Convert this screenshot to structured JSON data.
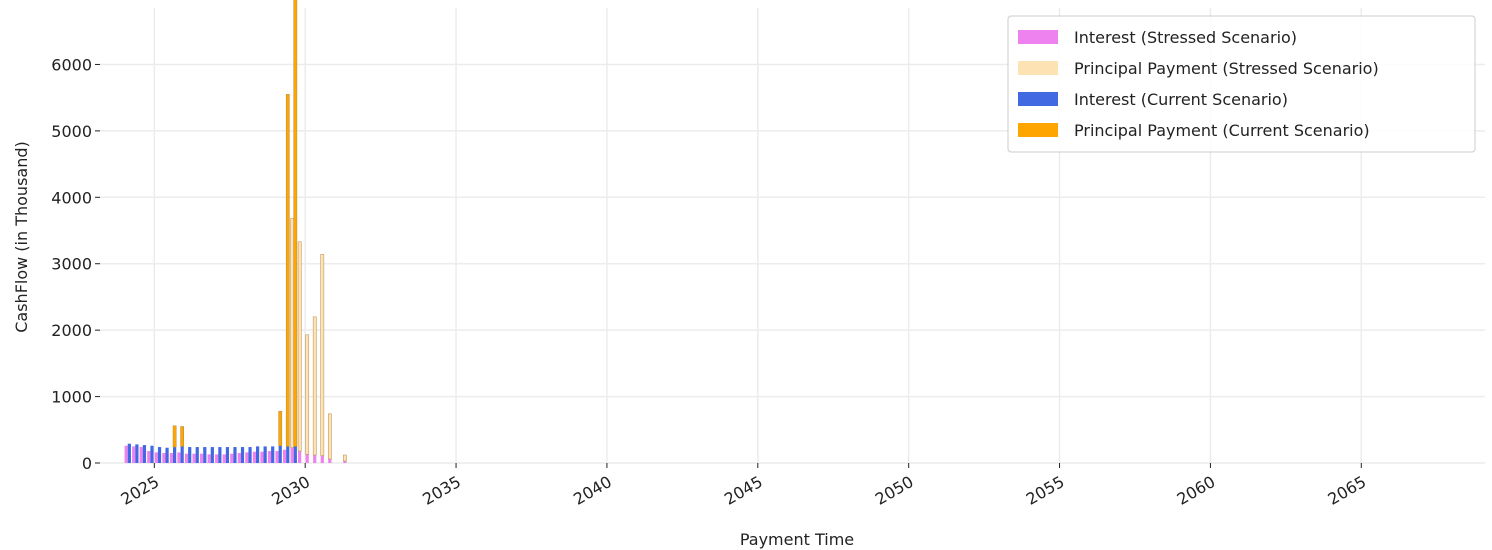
{
  "chart_data": {
    "type": "bar",
    "title": "",
    "xlabel": "Payment Time",
    "ylabel": "CashFlow (in Thousand)",
    "xlim": [
      2023.2,
      2069.1
    ],
    "ylim": [
      0,
      6850
    ],
    "x_ticks": [
      2025,
      2030,
      2035,
      2040,
      2045,
      2050,
      2055,
      2060,
      2065
    ],
    "y_ticks": [
      0,
      1000,
      2000,
      3000,
      4000,
      5000,
      6000
    ],
    "grid": true,
    "legend_position": "top-right",
    "colors": {
      "stressed_interest": "#ee82ee",
      "stressed_principal": "#fde2b4",
      "current_interest": "#4169e1",
      "current_principal": "#ffa500",
      "grid": "#ececec"
    },
    "series": [
      {
        "name": "Interest (Stressed Scenario)",
        "x": [
          2024.1,
          2024.35,
          2024.6,
          2024.85,
          2025.1,
          2025.35,
          2025.6,
          2025.85,
          2026.1,
          2026.35,
          2026.6,
          2026.85,
          2027.1,
          2027.35,
          2027.6,
          2027.85,
          2028.1,
          2028.35,
          2028.6,
          2028.85,
          2029.1,
          2029.35,
          2029.6,
          2029.85,
          2030.1,
          2030.35,
          2030.6,
          2030.85,
          2031.35
        ],
        "values": [
          260,
          250,
          240,
          180,
          160,
          150,
          150,
          160,
          140,
          140,
          140,
          130,
          130,
          130,
          140,
          150,
          160,
          170,
          170,
          180,
          180,
          200,
          230,
          180,
          130,
          120,
          110,
          60,
          30
        ]
      },
      {
        "name": "Principal Payment (Stressed Scenario)",
        "x": [
          2024.1,
          2024.35,
          2024.6,
          2024.85,
          2025.1,
          2025.35,
          2025.6,
          2025.85,
          2026.1,
          2026.35,
          2026.6,
          2026.85,
          2027.1,
          2027.35,
          2027.6,
          2027.85,
          2028.1,
          2028.35,
          2028.6,
          2028.85,
          2029.1,
          2029.35,
          2029.6,
          2029.85,
          2030.1,
          2030.35,
          2030.6,
          2030.85,
          2031.35
        ],
        "values": [
          0,
          0,
          0,
          0,
          0,
          0,
          0,
          0,
          0,
          0,
          0,
          0,
          0,
          0,
          0,
          0,
          0,
          0,
          0,
          0,
          0,
          0,
          3450,
          3150,
          1800,
          2080,
          3030,
          680,
          90
        ]
      },
      {
        "name": "Interest (Current Scenario)",
        "x": [
          2024.1,
          2024.35,
          2024.6,
          2024.85,
          2025.1,
          2025.35,
          2025.6,
          2025.85,
          2026.1,
          2026.35,
          2026.6,
          2026.85,
          2027.1,
          2027.35,
          2027.6,
          2027.85,
          2028.1,
          2028.35,
          2028.6,
          2028.85,
          2029.1,
          2029.35,
          2029.6
        ],
        "values": [
          290,
          280,
          270,
          260,
          240,
          230,
          240,
          250,
          240,
          240,
          240,
          240,
          240,
          240,
          240,
          240,
          240,
          250,
          250,
          250,
          260,
          250,
          250
        ]
      },
      {
        "name": "Principal Payment (Current Scenario)",
        "x": [
          2024.1,
          2024.35,
          2024.6,
          2024.85,
          2025.1,
          2025.35,
          2025.6,
          2025.85,
          2026.1,
          2026.35,
          2026.6,
          2026.85,
          2027.1,
          2027.35,
          2027.6,
          2027.85,
          2028.1,
          2028.35,
          2028.6,
          2028.85,
          2029.1,
          2029.35,
          2029.6
        ],
        "values": [
          0,
          0,
          0,
          0,
          0,
          0,
          320,
          300,
          0,
          0,
          0,
          0,
          0,
          0,
          0,
          0,
          0,
          0,
          0,
          0,
          520,
          5300,
          6850
        ]
      }
    ]
  }
}
